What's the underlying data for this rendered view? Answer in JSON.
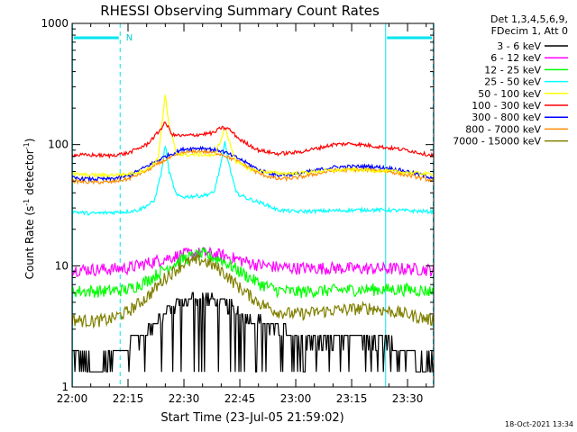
{
  "chart_data": {
    "type": "line",
    "title": "RHESSI Observing Summary Count Rates",
    "xlabel": "Start Time (23-Jul-05 21:59:02)",
    "ylabel_main": "Count Rate (s",
    "ylabel_sup1": "-1",
    "ylabel_mid": " detector",
    "ylabel_sup2": "-1",
    "ylabel_end": ")",
    "yscale": "log",
    "ylim": [
      1,
      1000
    ],
    "xlim_minutes": [
      0,
      97
    ],
    "x_ticks": [
      {
        "label": "22:00",
        "t": 0
      },
      {
        "label": "22:15",
        "t": 15
      },
      {
        "label": "22:30",
        "t": 30
      },
      {
        "label": "22:45",
        "t": 45
      },
      {
        "label": "23:00",
        "t": 60
      },
      {
        "label": "23:15",
        "t": 75
      },
      {
        "label": "23:30",
        "t": 90
      }
    ],
    "y_ticks": [
      {
        "label": "1",
        "v": 1
      },
      {
        "label": "10",
        "v": 10
      },
      {
        "label": "100",
        "v": 100
      },
      {
        "label": "1000",
        "v": 1000
      }
    ],
    "legend_header": [
      "Det 1,3,4,5,6,9,",
      "FDecim 1, Att 0"
    ],
    "legend_position": "right",
    "night_marker": "N",
    "night_intervals": [
      [
        0,
        13
      ],
      [
        84,
        97
      ]
    ],
    "timestamp": "18-Oct-2021 13:34",
    "series": [
      {
        "name": "3 - 6 keV",
        "color": "#000000",
        "points": [
          [
            0,
            1.8
          ],
          [
            5,
            1.5
          ],
          [
            10,
            1.7
          ],
          [
            15,
            2.2
          ],
          [
            20,
            2.8
          ],
          [
            25,
            4.2
          ],
          [
            30,
            5.2
          ],
          [
            35,
            5.5
          ],
          [
            40,
            5.0
          ],
          [
            45,
            4.2
          ],
          [
            50,
            3.5
          ],
          [
            55,
            3.0
          ],
          [
            60,
            2.6
          ],
          [
            65,
            2.4
          ],
          [
            70,
            2.5
          ],
          [
            75,
            2.6
          ],
          [
            80,
            2.5
          ],
          [
            85,
            2.2
          ],
          [
            90,
            1.8
          ],
          [
            96,
            1.6
          ]
        ]
      },
      {
        "name": "6 - 12 keV",
        "color": "#ff00ff",
        "points": [
          [
            0,
            9.3
          ],
          [
            10,
            9.4
          ],
          [
            15,
            9.6
          ],
          [
            20,
            10.5
          ],
          [
            25,
            11.5
          ],
          [
            30,
            12.5
          ],
          [
            35,
            12.8
          ],
          [
            40,
            12.3
          ],
          [
            45,
            11.2
          ],
          [
            50,
            10.2
          ],
          [
            55,
            9.8
          ],
          [
            60,
            9.6
          ],
          [
            70,
            9.6
          ],
          [
            80,
            9.5
          ],
          [
            90,
            9.5
          ],
          [
            96,
            9.3
          ]
        ]
      },
      {
        "name": "12 - 25 keV",
        "color": "#00ff00",
        "points": [
          [
            0,
            6.2
          ],
          [
            10,
            6.2
          ],
          [
            15,
            6.4
          ],
          [
            20,
            7.5
          ],
          [
            25,
            9.5
          ],
          [
            30,
            11.5
          ],
          [
            35,
            12.5
          ],
          [
            40,
            11.2
          ],
          [
            45,
            9.0
          ],
          [
            50,
            7.2
          ],
          [
            55,
            6.3
          ],
          [
            60,
            6.1
          ],
          [
            70,
            6.3
          ],
          [
            80,
            6.4
          ],
          [
            90,
            6.4
          ],
          [
            96,
            6.2
          ]
        ]
      },
      {
        "name": "25 - 50 keV",
        "color": "#00ffff",
        "points": [
          [
            0,
            28
          ],
          [
            5,
            27
          ],
          [
            10,
            27.5
          ],
          [
            15,
            28
          ],
          [
            18,
            29
          ],
          [
            22,
            34
          ],
          [
            24,
            60
          ],
          [
            25,
            100
          ],
          [
            26,
            60
          ],
          [
            28,
            38
          ],
          [
            30,
            37
          ],
          [
            35,
            38
          ],
          [
            38,
            40
          ],
          [
            40,
            70
          ],
          [
            41,
            105
          ],
          [
            42,
            70
          ],
          [
            44,
            40
          ],
          [
            47,
            36
          ],
          [
            52,
            32
          ],
          [
            55,
            29
          ],
          [
            60,
            28
          ],
          [
            70,
            28.5
          ],
          [
            80,
            29
          ],
          [
            90,
            28.5
          ],
          [
            96,
            28
          ]
        ]
      },
      {
        "name": "50 - 100 keV",
        "color": "#ffff00",
        "points": [
          [
            0,
            57
          ],
          [
            5,
            56
          ],
          [
            10,
            56
          ],
          [
            15,
            57
          ],
          [
            20,
            62
          ],
          [
            23,
            75
          ],
          [
            24,
            140
          ],
          [
            25,
            255
          ],
          [
            26,
            140
          ],
          [
            28,
            85
          ],
          [
            30,
            82
          ],
          [
            35,
            83
          ],
          [
            38,
            80
          ],
          [
            40,
            110
          ],
          [
            41,
            140
          ],
          [
            42,
            110
          ],
          [
            44,
            72
          ],
          [
            48,
            62
          ],
          [
            55,
            58
          ],
          [
            60,
            58
          ],
          [
            68,
            61
          ],
          [
            75,
            62
          ],
          [
            82,
            61
          ],
          [
            90,
            59
          ],
          [
            96,
            57
          ]
        ]
      },
      {
        "name": "100 - 300 keV",
        "color": "#ff0000",
        "points": [
          [
            0,
            82
          ],
          [
            5,
            82
          ],
          [
            10,
            81
          ],
          [
            15,
            85
          ],
          [
            20,
            100
          ],
          [
            23,
            125
          ],
          [
            25,
            152
          ],
          [
            27,
            120
          ],
          [
            30,
            118
          ],
          [
            35,
            122
          ],
          [
            38,
            125
          ],
          [
            40,
            138
          ],
          [
            42,
            135
          ],
          [
            45,
            110
          ],
          [
            50,
            90
          ],
          [
            55,
            84
          ],
          [
            60,
            86
          ],
          [
            65,
            92
          ],
          [
            70,
            100
          ],
          [
            75,
            102
          ],
          [
            80,
            98
          ],
          [
            85,
            94
          ],
          [
            90,
            90
          ],
          [
            96,
            82
          ]
        ]
      },
      {
        "name": "300 - 800 keV",
        "color": "#0000ff",
        "points": [
          [
            0,
            53
          ],
          [
            5,
            52
          ],
          [
            10,
            52
          ],
          [
            15,
            55
          ],
          [
            20,
            66
          ],
          [
            25,
            80
          ],
          [
            30,
            92
          ],
          [
            35,
            94
          ],
          [
            40,
            89
          ],
          [
            45,
            76
          ],
          [
            50,
            62
          ],
          [
            55,
            56
          ],
          [
            60,
            57
          ],
          [
            65,
            61
          ],
          [
            70,
            65
          ],
          [
            75,
            66
          ],
          [
            80,
            66
          ],
          [
            85,
            64
          ],
          [
            90,
            60
          ],
          [
            96,
            54
          ]
        ]
      },
      {
        "name": "800 - 7000 keV",
        "color": "#ff8c00",
        "points": [
          [
            0,
            50
          ],
          [
            5,
            49
          ],
          [
            10,
            49
          ],
          [
            15,
            52
          ],
          [
            20,
            61
          ],
          [
            25,
            75
          ],
          [
            30,
            86
          ],
          [
            35,
            88
          ],
          [
            40,
            84
          ],
          [
            45,
            71
          ],
          [
            50,
            58
          ],
          [
            55,
            52
          ],
          [
            60,
            53
          ],
          [
            65,
            57
          ],
          [
            70,
            61
          ],
          [
            75,
            62
          ],
          [
            80,
            62
          ],
          [
            85,
            60
          ],
          [
            90,
            56
          ],
          [
            96,
            51
          ]
        ]
      },
      {
        "name": "7000 - 15000 keV",
        "color": "#808000",
        "points": [
          [
            0,
            3.6
          ],
          [
            5,
            3.5
          ],
          [
            10,
            3.6
          ],
          [
            15,
            4.2
          ],
          [
            20,
            5.5
          ],
          [
            25,
            8.0
          ],
          [
            30,
            10.5
          ],
          [
            35,
            11.2
          ],
          [
            40,
            9.2
          ],
          [
            45,
            6.6
          ],
          [
            50,
            5.0
          ],
          [
            55,
            4.2
          ],
          [
            60,
            4.0
          ],
          [
            70,
            4.3
          ],
          [
            80,
            4.5
          ],
          [
            90,
            4.0
          ],
          [
            96,
            3.6
          ]
        ]
      }
    ]
  }
}
